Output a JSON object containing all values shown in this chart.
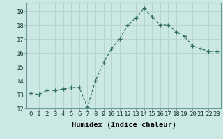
{
  "x": [
    0,
    1,
    2,
    3,
    4,
    5,
    6,
    7,
    8,
    9,
    10,
    11,
    12,
    13,
    14,
    15,
    16,
    17,
    18,
    19,
    20,
    21,
    22,
    23
  ],
  "y": [
    13.1,
    13.0,
    13.3,
    13.3,
    13.4,
    13.5,
    13.5,
    12.1,
    14.0,
    15.3,
    16.3,
    17.0,
    18.0,
    18.5,
    19.2,
    18.6,
    18.0,
    18.0,
    17.5,
    17.2,
    16.5,
    16.3,
    16.1,
    16.1
  ],
  "line_color": "#2d6b5e",
  "marker": "+",
  "marker_size": 4,
  "marker_lw": 1.0,
  "bg_color": "#cce8e4",
  "grid_color": "#b8d4d0",
  "xlabel": "Humidex (Indice chaleur)",
  "ylim": [
    12,
    19.6
  ],
  "yticks": [
    12,
    13,
    14,
    15,
    16,
    17,
    18,
    19
  ],
  "xticks": [
    0,
    1,
    2,
    3,
    4,
    5,
    6,
    7,
    8,
    9,
    10,
    11,
    12,
    13,
    14,
    15,
    16,
    17,
    18,
    19,
    20,
    21,
    22,
    23
  ],
  "label_fontsize": 7.5,
  "tick_fontsize": 6.5
}
